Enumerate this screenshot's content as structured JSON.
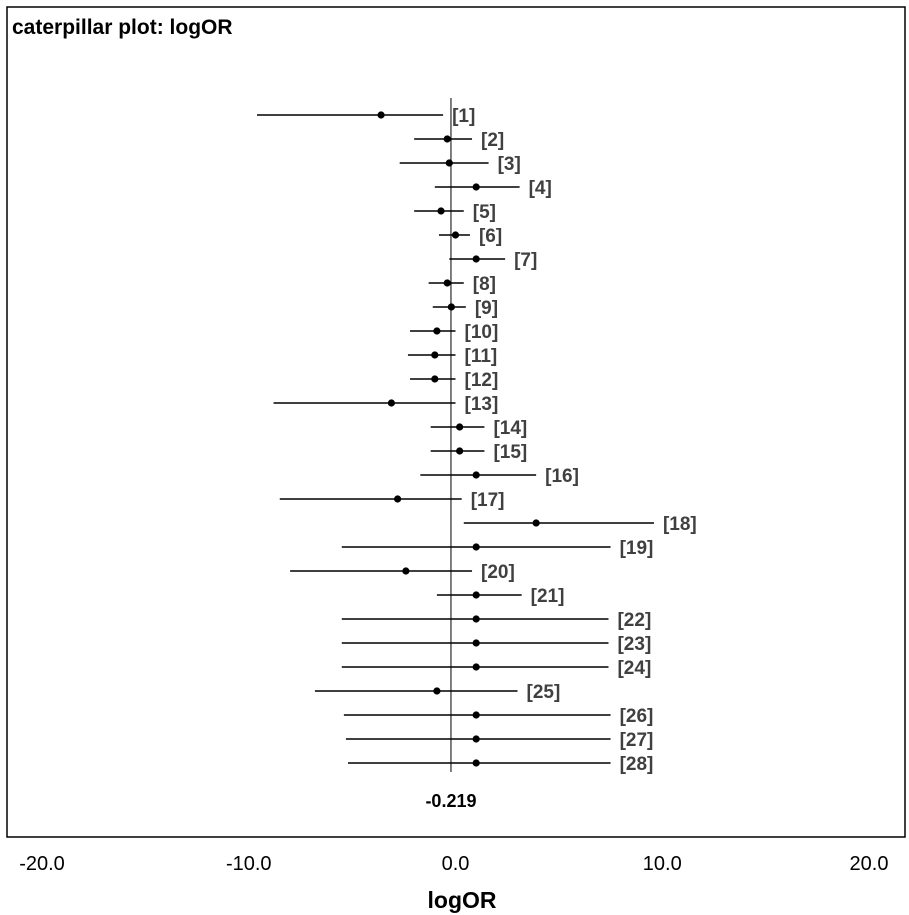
{
  "chart_data": {
    "type": "scatter",
    "subtype": "caterpillar",
    "title": "caterpillar plot: logOR",
    "xlabel": "logOR",
    "xlim": [
      -21.7,
      22
    ],
    "x_ticks": [
      -20,
      -10,
      0,
      10,
      20
    ],
    "x_tick_labels": [
      "-20.0",
      "-10.0",
      "0.0",
      "10.0",
      "20.0"
    ],
    "reference_value": -0.219,
    "reference_label": "-0.219",
    "colors": {
      "interval": "#000000",
      "point": "#000000",
      "label": "#404040",
      "frame": "#000000",
      "reference": "#000000"
    },
    "grid": false,
    "legend": "none",
    "items": [
      {
        "label": "[1]",
        "mean": -3.6,
        "lower": -9.6,
        "upper": -0.6
      },
      {
        "label": "[2]",
        "mean": -0.4,
        "lower": -2.0,
        "upper": 0.8
      },
      {
        "label": "[3]",
        "mean": -0.3,
        "lower": -2.7,
        "upper": 1.6
      },
      {
        "label": "[4]",
        "mean": 1.0,
        "lower": -1.0,
        "upper": 3.1
      },
      {
        "label": "[5]",
        "mean": -0.7,
        "lower": -2.0,
        "upper": 0.4
      },
      {
        "label": "[6]",
        "mean": 0.0,
        "lower": -0.8,
        "upper": 0.7
      },
      {
        "label": "[7]",
        "mean": 1.0,
        "lower": -0.3,
        "upper": 2.4
      },
      {
        "label": "[8]",
        "mean": -0.4,
        "lower": -1.3,
        "upper": 0.4
      },
      {
        "label": "[9]",
        "mean": -0.2,
        "lower": -1.1,
        "upper": 0.5
      },
      {
        "label": "[10]",
        "mean": -0.9,
        "lower": -2.2,
        "upper": 0.0
      },
      {
        "label": "[11]",
        "mean": -1.0,
        "lower": -2.3,
        "upper": 0.0
      },
      {
        "label": "[12]",
        "mean": -1.0,
        "lower": -2.2,
        "upper": 0.0
      },
      {
        "label": "[13]",
        "mean": -3.1,
        "lower": -8.8,
        "upper": 0.0
      },
      {
        "label": "[14]",
        "mean": 0.2,
        "lower": -1.2,
        "upper": 1.4
      },
      {
        "label": "[15]",
        "mean": 0.2,
        "lower": -1.2,
        "upper": 1.4
      },
      {
        "label": "[16]",
        "mean": 1.0,
        "lower": -1.7,
        "upper": 3.9
      },
      {
        "label": "[17]",
        "mean": -2.8,
        "lower": -8.5,
        "upper": 0.3
      },
      {
        "label": "[18]",
        "mean": 3.9,
        "lower": 0.4,
        "upper": 9.6
      },
      {
        "label": "[19]",
        "mean": 1.0,
        "lower": -5.5,
        "upper": 7.5
      },
      {
        "label": "[20]",
        "mean": -2.4,
        "lower": -8.0,
        "upper": 0.8
      },
      {
        "label": "[21]",
        "mean": 1.0,
        "lower": -0.9,
        "upper": 3.2
      },
      {
        "label": "[22]",
        "mean": 1.0,
        "lower": -5.5,
        "upper": 7.4
      },
      {
        "label": "[23]",
        "mean": 1.0,
        "lower": -5.5,
        "upper": 7.4
      },
      {
        "label": "[24]",
        "mean": 1.0,
        "lower": -5.5,
        "upper": 7.4
      },
      {
        "label": "[25]",
        "mean": -0.9,
        "lower": -6.8,
        "upper": 3.0
      },
      {
        "label": "[26]",
        "mean": 1.0,
        "lower": -5.4,
        "upper": 7.5
      },
      {
        "label": "[27]",
        "mean": 1.0,
        "lower": -5.3,
        "upper": 7.5
      },
      {
        "label": "[28]",
        "mean": 1.0,
        "lower": -5.2,
        "upper": 7.5
      }
    ]
  }
}
